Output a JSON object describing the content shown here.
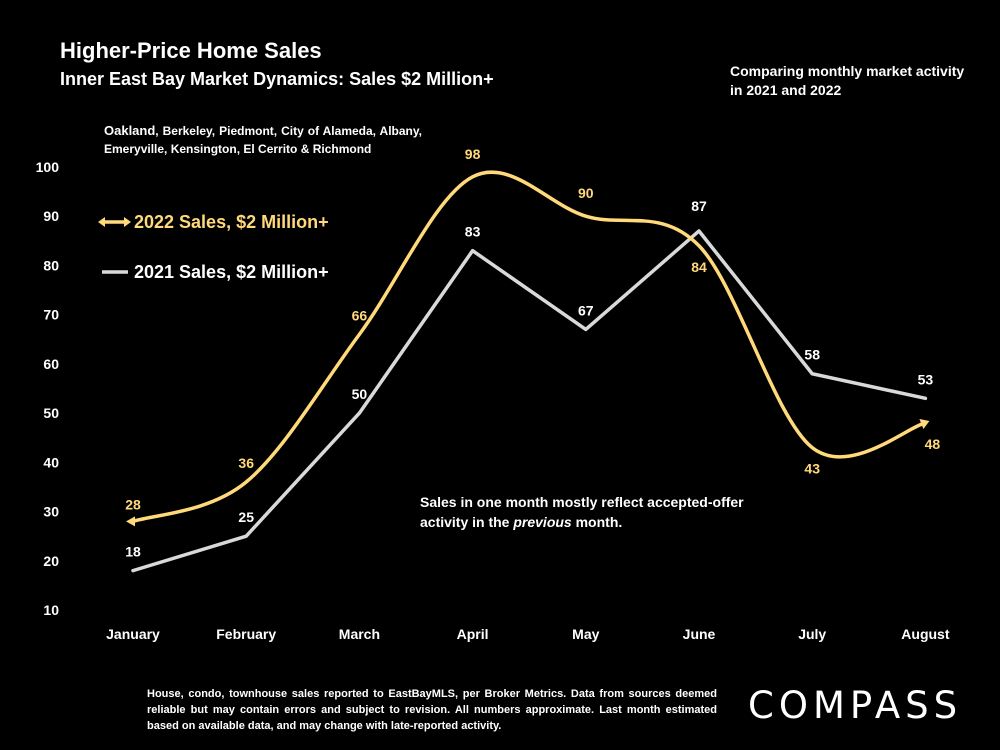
{
  "title": "Higher-Price Home Sales",
  "subtitle": "Inner East Bay Market Dynamics: Sales $2 Million+",
  "comparing_note": "Comparing monthly market activity in 2021 and 2022",
  "region_prefix": "Oakland",
  "region_rest": ", Berkeley, Piedmont, City of Alameda, Albany, Emeryville, Kensington, El Cerrito & Richmond",
  "annotation_part1": "Sales in one month mostly reflect accepted-offer activity in the ",
  "annotation_emph": "previous",
  "annotation_part2": " month.",
  "footnote": "House, condo, townhouse sales reported to EastBayMLS, per Broker Metrics. Data from sources deemed reliable but may contain errors and subject to revision. All numbers approximate. Last month estimated based on available data, and may change with late-reported activity.",
  "logo_text": "COMPASS",
  "chart_data": {
    "type": "line",
    "categories": [
      "January",
      "February",
      "March",
      "April",
      "May",
      "June",
      "July",
      "August"
    ],
    "ylim": [
      10,
      100
    ],
    "yticks": [
      10,
      20,
      30,
      40,
      50,
      60,
      70,
      80,
      90,
      100
    ],
    "grid": false,
    "legend_position": "upper-left",
    "series": [
      {
        "name": "2022 Sales, $2 Million+",
        "values": [
          28,
          36,
          66,
          98,
          90,
          84,
          43,
          48
        ],
        "color": "#FFD97A",
        "smooth": true
      },
      {
        "name": "2021 Sales, $2 Million+",
        "values": [
          18,
          25,
          50,
          83,
          67,
          87,
          58,
          53
        ],
        "color": "#D9D9D9",
        "smooth": false
      }
    ]
  }
}
